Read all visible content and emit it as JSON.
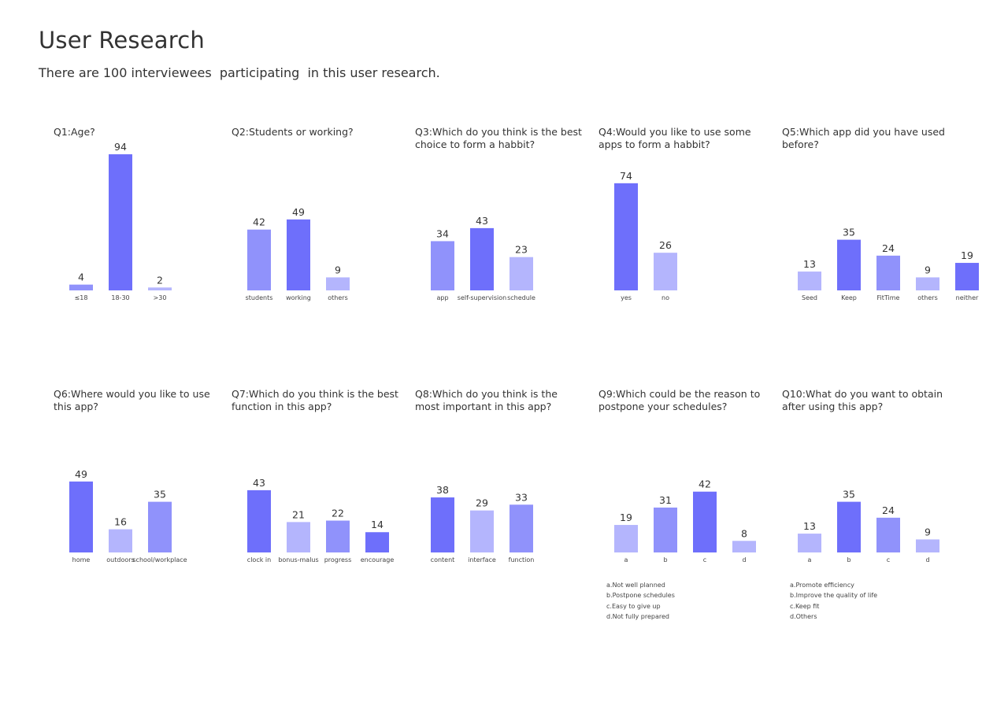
{
  "page": {
    "title": "User Research",
    "subtitle": "There are 100 interviewees  participating  in this user research."
  },
  "colors": {
    "dark": "#6e6ffb",
    "medium": "#9092fb",
    "light": "#b4b5fd"
  },
  "chart_data": [
    {
      "type": "bar",
      "title": "Q1:Age?",
      "categories": [
        "≤18",
        "18-30",
        ">30"
      ],
      "values": [
        4,
        94,
        2
      ],
      "colors": [
        "medium",
        "dark",
        "light"
      ],
      "ylim": [
        0,
        100
      ]
    },
    {
      "type": "bar",
      "title": "Q2:Students or working?",
      "categories": [
        "students",
        "working",
        "others"
      ],
      "values": [
        42,
        49,
        9
      ],
      "colors": [
        "medium",
        "dark",
        "light"
      ],
      "ylim": [
        0,
        100
      ]
    },
    {
      "type": "bar",
      "title": "Q3:Which do you think is the best choice to form a habbit?",
      "categories": [
        "app",
        "self-supervision",
        "schedule"
      ],
      "values": [
        34,
        43,
        23
      ],
      "colors": [
        "medium",
        "dark",
        "light"
      ],
      "ylim": [
        0,
        100
      ]
    },
    {
      "type": "bar",
      "title": "Q4:Would you like to use some apps to form a habbit?",
      "categories": [
        "yes",
        "no"
      ],
      "values": [
        74,
        26
      ],
      "colors": [
        "dark",
        "light"
      ],
      "ylim": [
        0,
        100
      ]
    },
    {
      "type": "bar",
      "title": "Q5:Which app did you have used before?",
      "categories": [
        "Seed",
        "Keep",
        "FitTime",
        "others",
        "neither"
      ],
      "values": [
        13,
        35,
        24,
        9,
        19
      ],
      "colors": [
        "light",
        "dark",
        "medium",
        "light",
        "dark"
      ],
      "ylim": [
        0,
        100
      ]
    },
    {
      "type": "bar",
      "title": "Q6:Where would you like to use this app?",
      "categories": [
        "home",
        "outdoors",
        "school/workplace"
      ],
      "values": [
        49,
        16,
        35
      ],
      "colors": [
        "dark",
        "light",
        "medium"
      ],
      "ylim": [
        0,
        100
      ]
    },
    {
      "type": "bar",
      "title": "Q7:Which do you think is the best function in this app?",
      "categories": [
        "clock in",
        "bonus-malus",
        "progress",
        "encourage"
      ],
      "values": [
        43,
        21,
        22,
        14
      ],
      "colors": [
        "dark",
        "light",
        "medium",
        "dark"
      ],
      "ylim": [
        0,
        100
      ]
    },
    {
      "type": "bar",
      "title": "Q8:Which do you think is the most important in this app?",
      "categories": [
        "content",
        "interface",
        "function"
      ],
      "values": [
        38,
        29,
        33
      ],
      "colors": [
        "dark",
        "light",
        "medium"
      ],
      "ylim": [
        0,
        100
      ]
    },
    {
      "type": "bar",
      "title": "Q9:Which could be the reason to postpone your schedules?",
      "categories": [
        "a",
        "b",
        "c",
        "d"
      ],
      "values": [
        19,
        31,
        42,
        8
      ],
      "colors": [
        "light",
        "medium",
        "dark",
        "light"
      ],
      "ylim": [
        0,
        100
      ],
      "notes": [
        "a.Not well planned",
        "b.Postpone schedules",
        "c.Easy to give up",
        "d.Not fully prepared"
      ]
    },
    {
      "type": "bar",
      "title": "Q10:What do you want to obtain after using this app?",
      "categories": [
        "a",
        "b",
        "c",
        "d"
      ],
      "values": [
        13,
        35,
        24,
        9
      ],
      "colors": [
        "light",
        "dark",
        "medium",
        "light"
      ],
      "ylim": [
        0,
        100
      ],
      "notes": [
        "a.Promote efficiency",
        "b.Improve the quality of life",
        "c.Keep fit",
        "d.Others"
      ]
    }
  ]
}
